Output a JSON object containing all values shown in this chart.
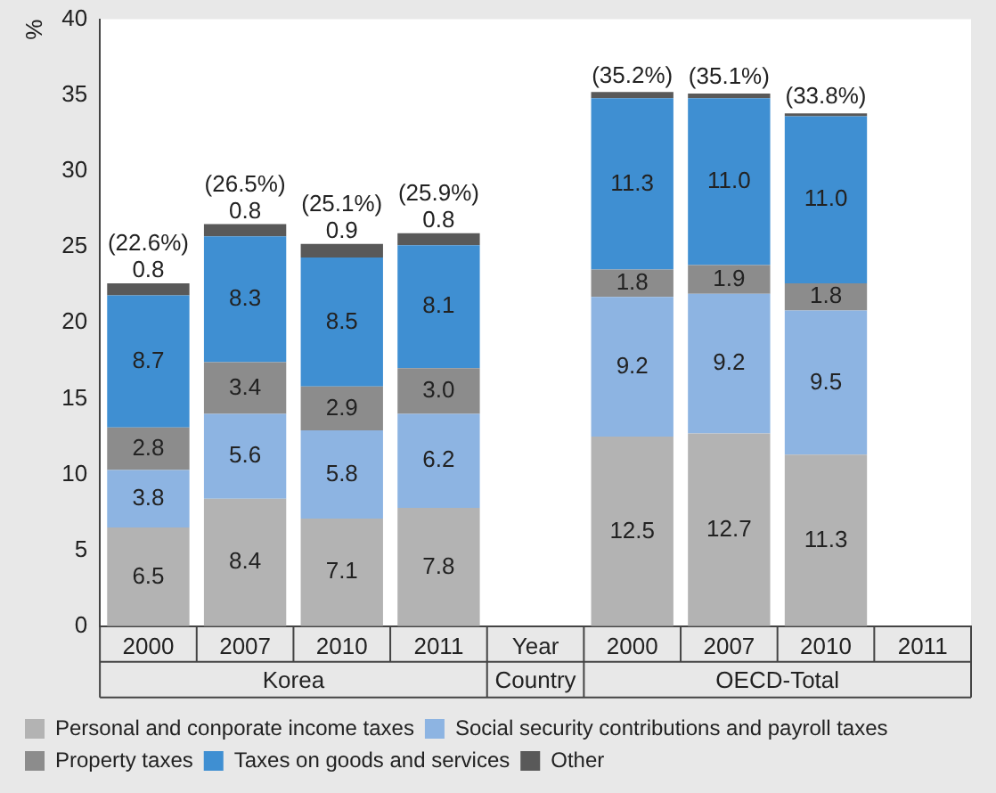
{
  "chart_data": {
    "type": "bar",
    "stacked": true,
    "ylabel": "%",
    "categories": [
      "2000",
      "2007",
      "2010",
      "2011",
      "Year",
      "2000",
      "2007",
      "2010",
      "2011"
    ],
    "annotations": [
      "Korea",
      "Country",
      "OECD-Total"
    ],
    "series": [
      {
        "name": "Personal and conporate income taxes",
        "color": "#b3b3b3",
        "values": [
          6.5,
          8.4,
          7.1,
          7.8,
          null,
          12.5,
          12.7,
          11.3,
          null
        ],
        "value_labels": [
          "6.5",
          "8.4",
          "7.1",
          "7.8",
          null,
          "12.5",
          "12.7",
          "11.3",
          null
        ]
      },
      {
        "name": "Social security contributions and payroll taxes",
        "color": "#8db4e2",
        "values": [
          3.8,
          5.6,
          5.8,
          6.2,
          null,
          9.2,
          9.2,
          9.5,
          null
        ],
        "value_labels": [
          "3.8",
          "5.6",
          "5.8",
          "6.2",
          null,
          "9.2",
          "9.2",
          "9.5",
          null
        ]
      },
      {
        "name": "Property taxes",
        "color": "#8c8c8c",
        "values": [
          2.8,
          3.4,
          2.9,
          3.0,
          null,
          1.8,
          1.9,
          1.8,
          null
        ],
        "value_labels": [
          "2.8",
          "3.4",
          "2.9",
          "3.0",
          null,
          "1.8",
          "1.9",
          "1.8",
          null
        ]
      },
      {
        "name": "Taxes on goods and services",
        "color": "#3f8fd2",
        "values": [
          8.7,
          8.3,
          8.5,
          8.1,
          null,
          11.3,
          11.0,
          11.0,
          null
        ],
        "value_labels": [
          "8.7",
          "8.3",
          "8.5",
          "8.1",
          null,
          "11.3",
          "11.0",
          "11.0",
          null
        ]
      },
      {
        "name": "Other",
        "color": "#595959",
        "values": [
          0.8,
          0.8,
          0.9,
          0.8,
          null,
          0.4,
          0.3,
          0.2,
          null
        ],
        "value_labels": [
          "0.8",
          "0.8",
          "0.9",
          "0.8",
          null,
          null,
          null,
          null,
          null
        ]
      }
    ],
    "totals": [
      "(22.6%)",
      "(26.5%)",
      "(25.1%)",
      "(25.9%)",
      null,
      "(35.2%)",
      "(35.1%)",
      "(33.8%)",
      null
    ],
    "ylim": [
      0,
      40
    ],
    "yticks": [
      0,
      5,
      10,
      15,
      20,
      25,
      30,
      35,
      40
    ],
    "grid": false,
    "legend": "bottom"
  }
}
